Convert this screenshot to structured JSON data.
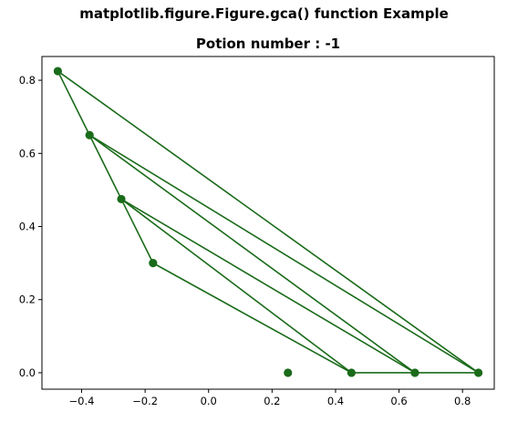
{
  "chart_data": {
    "type": "scatter",
    "suptitle": "matplotlib.figure.Figure.gca() function Example",
    "title": "Potion number : -1",
    "xlabel": "",
    "ylabel": "",
    "xlim": [
      -0.525,
      0.9
    ],
    "ylim": [
      -0.045,
      0.865
    ],
    "xticks": [
      -0.4,
      -0.2,
      0.0,
      0.2,
      0.4,
      0.6,
      0.8
    ],
    "xtick_labels": [
      "−0.4",
      "−0.2",
      "0.0",
      "0.2",
      "0.4",
      "0.6",
      "0.8"
    ],
    "yticks": [
      0.0,
      0.2,
      0.4,
      0.6,
      0.8
    ],
    "ytick_labels": [
      "0.0",
      "0.2",
      "0.4",
      "0.6",
      "0.8"
    ],
    "grid": false,
    "color": "#1a6b1a",
    "points": [
      {
        "x": -0.475,
        "y": 0.825
      },
      {
        "x": -0.375,
        "y": 0.65
      },
      {
        "x": -0.275,
        "y": 0.475
      },
      {
        "x": -0.175,
        "y": 0.3
      },
      {
        "x": 0.25,
        "y": 0.0
      },
      {
        "x": 0.45,
        "y": 0.0
      },
      {
        "x": 0.65,
        "y": 0.0
      },
      {
        "x": 0.85,
        "y": 0.0
      }
    ],
    "segments": [
      [
        -0.475,
        0.825,
        -0.375,
        0.65
      ],
      [
        -0.375,
        0.65,
        -0.275,
        0.475
      ],
      [
        -0.275,
        0.475,
        -0.175,
        0.3
      ],
      [
        -0.475,
        0.825,
        0.85,
        0.0
      ],
      [
        -0.375,
        0.65,
        0.85,
        0.0
      ],
      [
        -0.375,
        0.65,
        0.65,
        0.0
      ],
      [
        -0.275,
        0.475,
        0.65,
        0.0
      ],
      [
        -0.275,
        0.475,
        0.45,
        0.0
      ],
      [
        -0.175,
        0.3,
        0.45,
        0.0
      ],
      [
        0.45,
        0.0,
        0.85,
        0.0
      ]
    ]
  }
}
